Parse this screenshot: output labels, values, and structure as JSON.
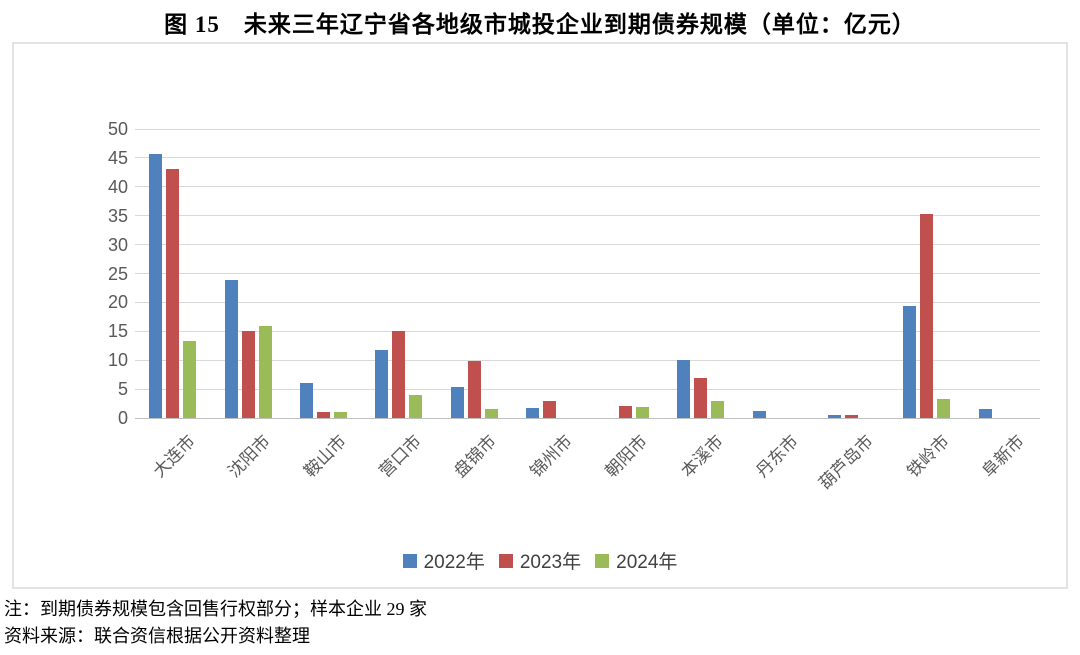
{
  "page": {
    "title": "图 15　未来三年辽宁省各地级市城投企业到期债券规模（单位：亿元）",
    "note_line1": "注：到期债券规模包含回售行权部分；样本企业 29 家",
    "note_line2": "资料来源：联合资信根据公开资料整理"
  },
  "chart_data": {
    "type": "bar",
    "title": "图 15　未来三年辽宁省各地级市城投企业到期债券规模（单位：亿元）",
    "unit": "亿元",
    "categories": [
      "大连市",
      "沈阳市",
      "鞍山市",
      "营口市",
      "盘锦市",
      "锦州市",
      "朝阳市",
      "本溪市",
      "丹东市",
      "葫芦岛市",
      "铁岭市",
      "阜新市"
    ],
    "series": [
      {
        "name": "2022年",
        "color": "#4F81BD",
        "values": [
          45.7,
          23.8,
          6.0,
          11.7,
          5.3,
          1.7,
          0,
          10.0,
          1.2,
          0.5,
          19.3,
          1.6
        ]
      },
      {
        "name": "2023年",
        "color": "#C0504D",
        "values": [
          43.0,
          15.0,
          1.1,
          15.1,
          9.8,
          2.9,
          2.0,
          7.0,
          0,
          0.6,
          35.3,
          0
        ]
      },
      {
        "name": "2024年",
        "color": "#9BBB59",
        "values": [
          13.4,
          16.0,
          1.0,
          4.0,
          1.6,
          0,
          1.9,
          3.0,
          0,
          0,
          3.3,
          0
        ]
      }
    ],
    "xlabel": "",
    "ylabel": "",
    "ylim": [
      0,
      50
    ],
    "yticks": [
      0,
      5,
      10,
      15,
      20,
      25,
      30,
      35,
      40,
      45,
      50
    ],
    "grid": true,
    "grid_color": "#d9d9d9",
    "legend_position": "bottom",
    "axis_text_color": "#595959"
  }
}
